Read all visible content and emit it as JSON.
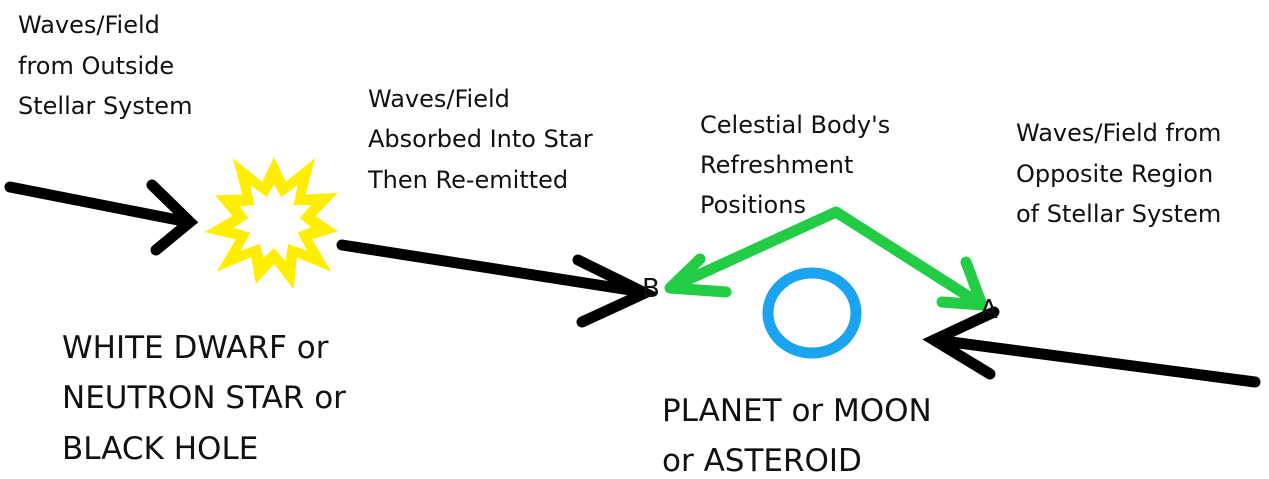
{
  "labels": [
    {
      "lines": [
        "Waves/Field",
        "from Outside",
        "Stellar System"
      ]
    },
    {
      "lines": [
        "Waves/Field",
        "Absorbed Into Star",
        "Then Re-emitted"
      ]
    },
    {
      "lines": [
        "Celestial Body's",
        "Refreshment",
        "Positions"
      ]
    },
    {
      "lines": [
        "Waves/Field from",
        "Opposite Region",
        "of Stellar System"
      ]
    },
    {
      "lines": [
        "WHITE DWARF or",
        "NEUTRON STAR or",
        "BLACK HOLE"
      ]
    },
    {
      "lines": [
        "PLANET or MOON",
        "or ASTEROID"
      ]
    }
  ],
  "points": {
    "b": "B",
    "a": "A"
  }
}
